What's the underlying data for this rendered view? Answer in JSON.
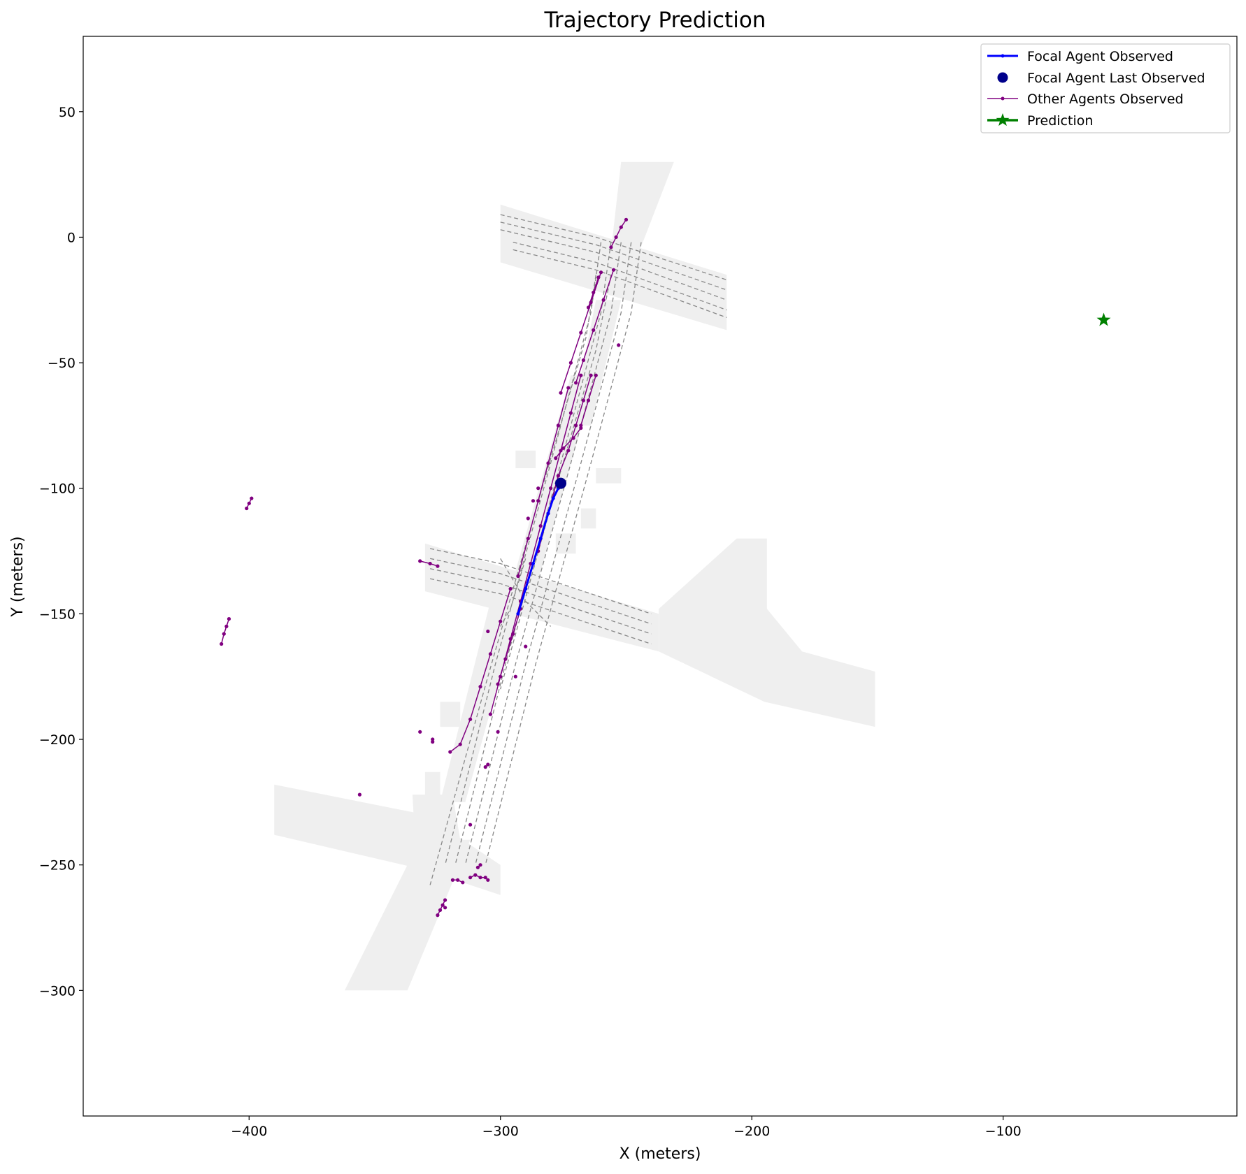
{
  "chart_data": {
    "type": "scatter",
    "title": "Trajectory Prediction",
    "xlabel": "X (meters)",
    "ylabel": "Y (meters)",
    "xlim": [
      -466,
      -7
    ],
    "ylim": [
      -350,
      80
    ],
    "xticks": [
      -400,
      -300,
      -200,
      -100
    ],
    "yticks": [
      50,
      0,
      -50,
      -100,
      -150,
      -200,
      -250,
      -300
    ],
    "grid": false,
    "legend_position": "top-right",
    "legend": [
      {
        "label": "Focal Agent Observed",
        "color": "#0000ff",
        "marker": "line-dot"
      },
      {
        "label": "Focal Agent Last Observed",
        "color": "#00008b",
        "marker": "circle"
      },
      {
        "label": "Other Agents Observed",
        "color": "#800080",
        "marker": "thin-line-dot"
      },
      {
        "label": "Prediction",
        "color": "#008000",
        "marker": "star"
      }
    ],
    "colors": {
      "focal": "#0000ff",
      "focal_last": "#00008b",
      "others": "#800080",
      "prediction": "#008000",
      "map_fill": "#efefef",
      "lane": "#888888"
    },
    "map_areas": [
      [
        [
          -252,
          30
        ],
        [
          -231,
          30
        ],
        [
          -248,
          -14
        ],
        [
          -257,
          -14
        ]
      ],
      [
        [
          -300,
          13
        ],
        [
          -210,
          -15
        ],
        [
          -210,
          -37
        ],
        [
          -300,
          -10
        ]
      ],
      [
        [
          -262,
          -25
        ],
        [
          -252,
          -25
        ],
        [
          -264,
          -75
        ],
        [
          -272,
          -75
        ]
      ],
      [
        [
          -272,
          -55
        ],
        [
          -262,
          -55
        ],
        [
          -286,
          -140
        ],
        [
          -296,
          -140
        ]
      ],
      [
        [
          -294,
          -85
        ],
        [
          -286,
          -85
        ],
        [
          -286,
          -92
        ],
        [
          -294,
          -92
        ]
      ],
      [
        [
          -262,
          -92
        ],
        [
          -252,
          -92
        ],
        [
          -252,
          -98
        ],
        [
          -262,
          -98
        ]
      ],
      [
        [
          -268,
          -108
        ],
        [
          -262,
          -108
        ],
        [
          -262,
          -116
        ],
        [
          -268,
          -116
        ]
      ],
      [
        [
          -278,
          -118
        ],
        [
          -270,
          -118
        ],
        [
          -270,
          -126
        ],
        [
          -278,
          -126
        ]
      ],
      [
        [
          -330,
          -122
        ],
        [
          -237,
          -150
        ],
        [
          -237,
          -165
        ],
        [
          -330,
          -141
        ]
      ],
      [
        [
          -304,
          -145
        ],
        [
          -292,
          -145
        ],
        [
          -314,
          -225
        ],
        [
          -324,
          -225
        ]
      ],
      [
        [
          -324,
          -185
        ],
        [
          -316,
          -185
        ],
        [
          -316,
          -195
        ],
        [
          -324,
          -195
        ]
      ],
      [
        [
          -330,
          -213
        ],
        [
          -324,
          -213
        ],
        [
          -324,
          -225
        ],
        [
          -330,
          -225
        ]
      ],
      [
        [
          -335,
          -222
        ],
        [
          -319,
          -222
        ],
        [
          -316,
          -240
        ],
        [
          -334,
          -240
        ]
      ],
      [
        [
          -390,
          -218
        ],
        [
          -330,
          -230
        ],
        [
          -300,
          -250
        ],
        [
          -300,
          -262
        ],
        [
          -330,
          -252
        ],
        [
          -390,
          -238
        ]
      ],
      [
        [
          -332,
          -240
        ],
        [
          -312,
          -240
        ],
        [
          -337,
          -300
        ],
        [
          -362,
          -300
        ]
      ],
      [
        [
          -237,
          -148
        ],
        [
          -206,
          -120
        ],
        [
          -194,
          -120
        ],
        [
          -194,
          -148
        ],
        [
          -180,
          -165
        ],
        [
          -151,
          -173
        ],
        [
          -151,
          -195
        ],
        [
          -195,
          -185
        ],
        [
          -237,
          -165
        ]
      ]
    ],
    "lanes": [
      [
        [
          -300,
          9
        ],
        [
          -262,
          0
        ],
        [
          -210,
          -17
        ]
      ],
      [
        [
          -300,
          6
        ],
        [
          -262,
          -3
        ],
        [
          -210,
          -21
        ]
      ],
      [
        [
          -300,
          3
        ],
        [
          -262,
          -6
        ],
        [
          -210,
          -25
        ]
      ],
      [
        [
          -295,
          -2
        ],
        [
          -262,
          -10
        ],
        [
          -210,
          -29
        ]
      ],
      [
        [
          -295,
          -5
        ],
        [
          -262,
          -13
        ],
        [
          -210,
          -32
        ]
      ],
      [
        [
          -260,
          -2
        ],
        [
          -264,
          -30
        ],
        [
          -280,
          -90
        ],
        [
          -302,
          -170
        ],
        [
          -322,
          -250
        ]
      ],
      [
        [
          -256,
          -2
        ],
        [
          -260,
          -30
        ],
        [
          -276,
          -90
        ],
        [
          -298,
          -170
        ],
        [
          -318,
          -250
        ]
      ],
      [
        [
          -252,
          -2
        ],
        [
          -256,
          -30
        ],
        [
          -272,
          -90
        ],
        [
          -294,
          -170
        ],
        [
          -314,
          -250
        ]
      ],
      [
        [
          -248,
          -2
        ],
        [
          -252,
          -30
        ],
        [
          -268,
          -90
        ],
        [
          -290,
          -170
        ],
        [
          -310,
          -250
        ]
      ],
      [
        [
          -244,
          -2
        ],
        [
          -248,
          -30
        ],
        [
          -264,
          -90
        ],
        [
          -286,
          -170
        ],
        [
          -306,
          -250
        ]
      ],
      [
        [
          -262,
          -15
        ],
        [
          -266,
          -40
        ],
        [
          -282,
          -95
        ],
        [
          -305,
          -175
        ],
        [
          -328,
          -258
        ]
      ],
      [
        [
          -256,
          -15
        ],
        [
          -262,
          -45
        ],
        [
          -278,
          -100
        ],
        [
          -300,
          -180
        ]
      ],
      [
        [
          -328,
          -124
        ],
        [
          -300,
          -130
        ],
        [
          -270,
          -140
        ],
        [
          -240,
          -150
        ]
      ],
      [
        [
          -328,
          -128
        ],
        [
          -300,
          -134
        ],
        [
          -270,
          -144
        ],
        [
          -240,
          -154
        ]
      ],
      [
        [
          -328,
          -132
        ],
        [
          -300,
          -138
        ],
        [
          -270,
          -148
        ],
        [
          -240,
          -158
        ]
      ],
      [
        [
          -328,
          -136
        ],
        [
          -300,
          -142
        ],
        [
          -270,
          -152
        ],
        [
          -240,
          -162
        ]
      ],
      [
        [
          -300,
          -128
        ],
        [
          -290,
          -145
        ],
        [
          -280,
          -155
        ]
      ],
      [
        [
          -290,
          -128
        ],
        [
          -296,
          -148
        ],
        [
          -300,
          -155
        ]
      ]
    ],
    "focal_observed": {
      "name": "Focal Agent Observed",
      "x": [
        -293,
        -290,
        -287,
        -284,
        -281,
        -279,
        -277,
        -276
      ],
      "y": [
        -150,
        -140,
        -130,
        -120,
        -110,
        -104,
        -100,
        -98
      ]
    },
    "focal_last_observed": {
      "name": "Focal Agent Last Observed",
      "x": -276,
      "y": -98
    },
    "prediction": {
      "name": "Prediction",
      "x": -60,
      "y": -33
    },
    "other_agents": [
      {
        "x": [
          -250,
          -252,
          -254,
          -256
        ],
        "y": [
          7,
          4,
          0,
          -4
        ]
      },
      {
        "x": [
          -260,
          -264,
          -268,
          -272,
          -276
        ],
        "y": [
          -14,
          -26,
          -38,
          -50,
          -62
        ]
      },
      {
        "x": [
          -255,
          -259,
          -263,
          -267,
          -270
        ],
        "y": [
          -13,
          -25,
          -37,
          -49,
          -58
        ]
      },
      {
        "x": [
          -261,
          -263,
          -265
        ],
        "y": [
          -16,
          -22,
          -28
        ]
      },
      {
        "x": [
          -268,
          -272,
          -276,
          -280,
          -284,
          -288,
          -292,
          -296,
          -300,
          -304
        ],
        "y": [
          -55,
          -70,
          -85,
          -100,
          -115,
          -130,
          -145,
          -160,
          -175,
          -190
        ]
      },
      {
        "x": [
          -264,
          -267,
          -270,
          -273,
          -277,
          -281,
          -285
        ],
        "y": [
          -55,
          -65,
          -75,
          -85,
          -95,
          -110,
          -125
        ]
      },
      {
        "x": [
          -262,
          -265,
          -268
        ],
        "y": [
          -55,
          -65,
          -75
        ]
      },
      {
        "x": [
          -268,
          -271,
          -275,
          -278
        ],
        "y": [
          -76,
          -80,
          -84,
          -88
        ]
      },
      {
        "x": [
          -273,
          -277,
          -281,
          -285,
          -289,
          -293
        ],
        "y": [
          -60,
          -75,
          -90,
          -105,
          -120,
          -135
        ]
      },
      {
        "x": [
          -296,
          -300,
          -304,
          -308,
          -312,
          -316,
          -320
        ],
        "y": [
          -140,
          -153,
          -166,
          -179,
          -192,
          -202,
          -205
        ]
      },
      {
        "x": [
          -292,
          -295,
          -298,
          -301
        ],
        "y": [
          -148,
          -158,
          -168,
          -178
        ]
      },
      {
        "x": [
          -332,
          -328,
          -325
        ],
        "y": [
          -129,
          -130,
          -131
        ]
      },
      {
        "x": [
          -399,
          -400,
          -401
        ],
        "y": [
          -104,
          -106,
          -108
        ]
      },
      {
        "x": [
          -408,
          -409,
          -410,
          -411
        ],
        "y": [
          -152,
          -155,
          -158,
          -162
        ]
      },
      {
        "x": [
          -253
        ],
        "y": [
          -43
        ]
      },
      {
        "x": [
          -285
        ],
        "y": [
          -100
        ]
      },
      {
        "x": [
          -287
        ],
        "y": [
          -105
        ]
      },
      {
        "x": [
          -289
        ],
        "y": [
          -112
        ]
      },
      {
        "x": [
          -305
        ],
        "y": [
          -157
        ]
      },
      {
        "x": [
          -290
        ],
        "y": [
          -163
        ]
      },
      {
        "x": [
          -294
        ],
        "y": [
          -175
        ]
      },
      {
        "x": [
          -301
        ],
        "y": [
          -197
        ]
      },
      {
        "x": [
          -332
        ],
        "y": [
          -197
        ]
      },
      {
        "x": [
          -327,
          -327
        ],
        "y": [
          -200,
          -201
        ]
      },
      {
        "x": [
          -305,
          -306
        ],
        "y": [
          -210,
          -211
        ]
      },
      {
        "x": [
          -356
        ],
        "y": [
          -222
        ]
      },
      {
        "x": [
          -312
        ],
        "y": [
          -234
        ]
      },
      {
        "x": [
          -308,
          -309
        ],
        "y": [
          -250,
          -251
        ]
      },
      {
        "x": [
          -319,
          -317,
          -315
        ],
        "y": [
          -256,
          -256,
          -257
        ]
      },
      {
        "x": [
          -312,
          -310,
          -308,
          -306,
          -305
        ],
        "y": [
          -255,
          -254,
          -255,
          -255,
          -256
        ]
      },
      {
        "x": [
          -322,
          -323,
          -324,
          -325
        ],
        "y": [
          -264,
          -266,
          -268,
          -270
        ]
      },
      {
        "x": [
          -322
        ],
        "y": [
          -267
        ]
      }
    ]
  }
}
